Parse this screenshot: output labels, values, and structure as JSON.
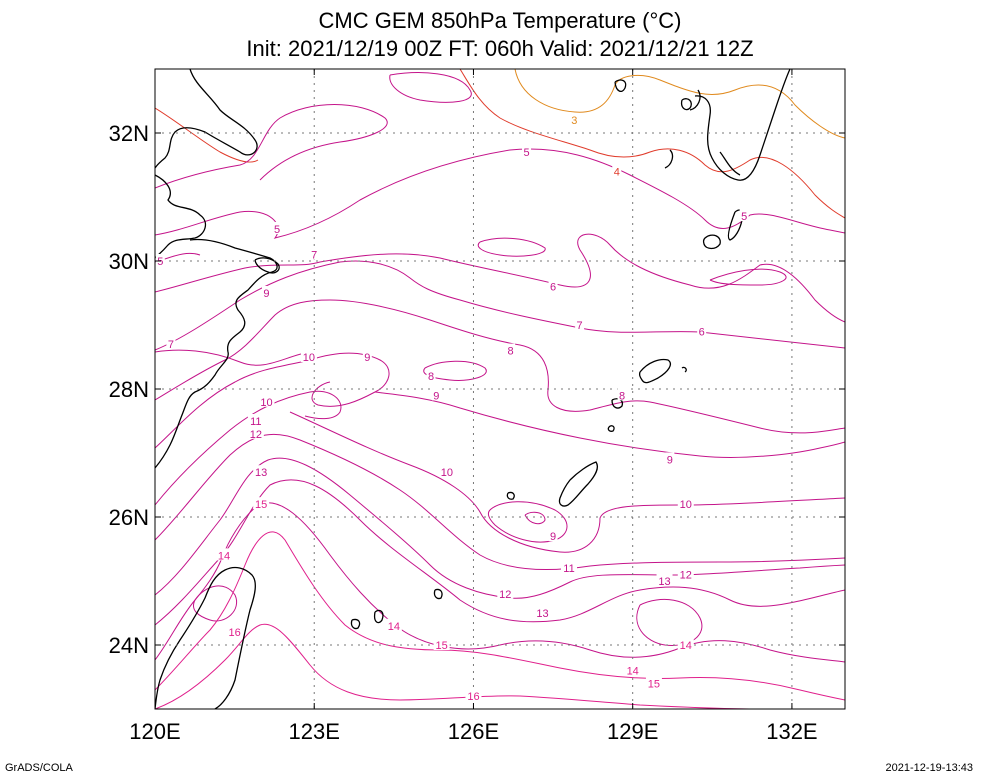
{
  "title": {
    "line1": "CMC GEM 850hPa Temperature (°C)",
    "line2": "Init: 2021/12/19 00Z  FT: 060h  Valid: 2021/12/21 12Z"
  },
  "footer": {
    "left": "GrADS/COLA",
    "right": "2021-12-19-13:43"
  },
  "map": {
    "lon_range": [
      120,
      133
    ],
    "lat_range": [
      23,
      33
    ],
    "lon_ticks": [
      {
        "value": 120,
        "label": "120E"
      },
      {
        "value": 123,
        "label": "123E"
      },
      {
        "value": 126,
        "label": "126E"
      },
      {
        "value": 129,
        "label": "129E"
      },
      {
        "value": 132,
        "label": "132E"
      }
    ],
    "lat_ticks": [
      {
        "value": 24,
        "label": "24N"
      },
      {
        "value": 26,
        "label": "26N"
      },
      {
        "value": 28,
        "label": "28N"
      },
      {
        "value": 30,
        "label": "30N"
      },
      {
        "value": 32,
        "label": "32N"
      }
    ],
    "grid": true,
    "contour_colors": {
      "3": "#e08a1e",
      "4": "#e03c2c",
      "default": "#c4148a",
      "warm": "#e0208c"
    },
    "contour_labels": [
      {
        "text": "3",
        "lon": 127.9,
        "lat": 32.2
      },
      {
        "text": "4",
        "lon": 128.7,
        "lat": 31.4
      },
      {
        "text": "5",
        "lon": 127.0,
        "lat": 31.7
      },
      {
        "text": "5",
        "lon": 122.3,
        "lat": 30.5
      },
      {
        "text": "5",
        "lon": 120.1,
        "lat": 30.0
      },
      {
        "text": "5",
        "lon": 131.1,
        "lat": 30.7
      },
      {
        "text": "6",
        "lon": 127.5,
        "lat": 29.6
      },
      {
        "text": "6",
        "lon": 130.3,
        "lat": 28.9
      },
      {
        "text": "7",
        "lon": 123.0,
        "lat": 30.1
      },
      {
        "text": "7",
        "lon": 120.3,
        "lat": 28.7
      },
      {
        "text": "7",
        "lon": 128.0,
        "lat": 29.0
      },
      {
        "text": "8",
        "lon": 126.7,
        "lat": 28.6
      },
      {
        "text": "8",
        "lon": 125.2,
        "lat": 28.2
      },
      {
        "text": "8",
        "lon": 128.8,
        "lat": 27.9
      },
      {
        "text": "9",
        "lon": 122.1,
        "lat": 29.5
      },
      {
        "text": "9",
        "lon": 124.0,
        "lat": 28.5
      },
      {
        "text": "9",
        "lon": 125.3,
        "lat": 27.9
      },
      {
        "text": "9",
        "lon": 129.7,
        "lat": 26.9
      },
      {
        "text": "9",
        "lon": 127.5,
        "lat": 25.7
      },
      {
        "text": "10",
        "lon": 122.9,
        "lat": 28.5
      },
      {
        "text": "10",
        "lon": 122.1,
        "lat": 27.8
      },
      {
        "text": "10",
        "lon": 125.5,
        "lat": 26.7
      },
      {
        "text": "10",
        "lon": 130.0,
        "lat": 26.2
      },
      {
        "text": "11",
        "lon": 121.9,
        "lat": 27.5
      },
      {
        "text": "11",
        "lon": 127.8,
        "lat": 25.2
      },
      {
        "text": "12",
        "lon": 121.9,
        "lat": 27.3
      },
      {
        "text": "12",
        "lon": 126.6,
        "lat": 24.8
      },
      {
        "text": "12",
        "lon": 130.0,
        "lat": 25.1
      },
      {
        "text": "13",
        "lon": 122.0,
        "lat": 26.7
      },
      {
        "text": "13",
        "lon": 127.3,
        "lat": 24.5
      },
      {
        "text": "13",
        "lon": 129.6,
        "lat": 25.0
      },
      {
        "text": "14",
        "lon": 121.3,
        "lat": 25.4
      },
      {
        "text": "14",
        "lon": 124.5,
        "lat": 24.3
      },
      {
        "text": "14",
        "lon": 129.0,
        "lat": 23.6
      },
      {
        "text": "14",
        "lon": 130.0,
        "lat": 24.0
      },
      {
        "text": "15",
        "lon": 122.0,
        "lat": 26.2
      },
      {
        "text": "15",
        "lon": 125.4,
        "lat": 24.0
      },
      {
        "text": "15",
        "lon": 129.4,
        "lat": 23.4
      },
      {
        "text": "16",
        "lon": 121.5,
        "lat": 24.2
      },
      {
        "text": "16",
        "lon": 126.0,
        "lat": 23.2
      }
    ]
  }
}
